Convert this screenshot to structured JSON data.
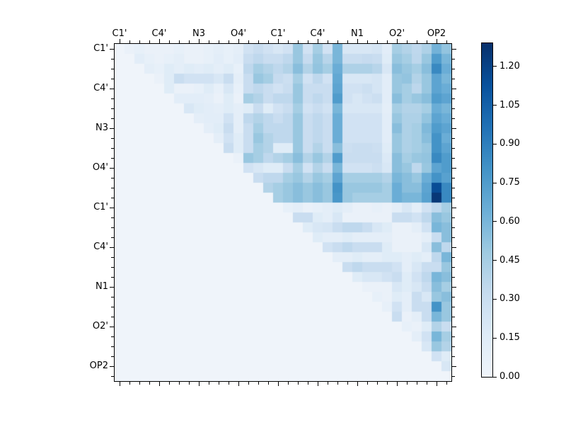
{
  "chart_data": {
    "type": "heatmap",
    "title": "",
    "n": 34,
    "x_tick_labels": [
      "C1'",
      "C4'",
      "N3",
      "O4'",
      "C1'",
      "C4'",
      "N1",
      "O2'",
      "OP2"
    ],
    "y_tick_labels": [
      "C1'",
      "C4'",
      "N3",
      "O4'",
      "C1'",
      "C4'",
      "N1",
      "O2'",
      "OP2"
    ],
    "labeled_tick_positions": [
      0,
      4,
      8,
      12,
      16,
      20,
      24,
      28,
      32
    ],
    "vmin": 0.0,
    "vmax": 1.29,
    "colormap": {
      "name": "Blues",
      "stops": [
        "#eff4fa",
        "#deebf7",
        "#c6dbef",
        "#9ecae1",
        "#6baed6",
        "#4292c6",
        "#2171b5",
        "#08519c",
        "#08306b"
      ]
    },
    "colorbar": {
      "tick_labels": [
        "0.00",
        "0.15",
        "0.30",
        "0.45",
        "0.60",
        "0.75",
        "0.90",
        "1.05",
        "1.20"
      ],
      "tick_values": [
        0.0,
        0.15,
        0.3,
        0.45,
        0.6,
        0.75,
        0.9,
        1.05,
        1.2
      ]
    },
    "matrix": [
      [
        0,
        0.05,
        0.08,
        0.05,
        0.05,
        0.05,
        0.08,
        0.05,
        0.05,
        0.08,
        0.1,
        0.08,
        0.1,
        0.25,
        0.3,
        0.25,
        0.2,
        0.25,
        0.5,
        0.25,
        0.45,
        0.25,
        0.6,
        0.2,
        0.2,
        0.2,
        0.22,
        0.12,
        0.45,
        0.4,
        0.35,
        0.42,
        0.62,
        0.52
      ],
      [
        0,
        0,
        0.12,
        0.08,
        0.05,
        0.08,
        0.1,
        0.05,
        0.05,
        0.08,
        0.12,
        0.08,
        0.12,
        0.3,
        0.35,
        0.3,
        0.3,
        0.35,
        0.5,
        0.32,
        0.5,
        0.38,
        0.6,
        0.3,
        0.3,
        0.32,
        0.3,
        0.15,
        0.5,
        0.45,
        0.36,
        0.5,
        0.75,
        0.6
      ],
      [
        0,
        0,
        0,
        0.1,
        0.08,
        0.15,
        0.1,
        0.15,
        0.12,
        0.15,
        0.1,
        0.15,
        0.08,
        0.35,
        0.45,
        0.4,
        0.35,
        0.4,
        0.55,
        0.4,
        0.52,
        0.45,
        0.65,
        0.42,
        0.42,
        0.42,
        0.38,
        0.2,
        0.55,
        0.5,
        0.45,
        0.55,
        0.85,
        0.65
      ],
      [
        0,
        0,
        0,
        0,
        0.05,
        0.15,
        0.3,
        0.25,
        0.25,
        0.25,
        0.2,
        0.3,
        0.1,
        0.3,
        0.5,
        0.45,
        0.32,
        0.28,
        0.45,
        0.25,
        0.35,
        0.25,
        0.68,
        0.2,
        0.2,
        0.2,
        0.22,
        0.12,
        0.5,
        0.52,
        0.4,
        0.5,
        0.7,
        0.6
      ],
      [
        0,
        0,
        0,
        0,
        0,
        0.15,
        0.05,
        0.05,
        0.08,
        0.15,
        0.08,
        0.2,
        0.08,
        0.3,
        0.35,
        0.3,
        0.25,
        0.3,
        0.5,
        0.3,
        0.3,
        0.3,
        0.7,
        0.25,
        0.25,
        0.28,
        0.22,
        0.12,
        0.5,
        0.45,
        0.36,
        0.5,
        0.7,
        0.65
      ],
      [
        0,
        0,
        0,
        0,
        0,
        0,
        0.12,
        0.12,
        0.12,
        0.1,
        0.05,
        0.15,
        0.05,
        0.45,
        0.4,
        0.3,
        0.35,
        0.35,
        0.5,
        0.3,
        0.35,
        0.3,
        0.75,
        0.25,
        0.2,
        0.25,
        0.28,
        0.12,
        0.55,
        0.45,
        0.5,
        0.55,
        0.75,
        0.7
      ],
      [
        0,
        0,
        0,
        0,
        0,
        0,
        0,
        0.2,
        0.15,
        0.12,
        0.1,
        0.15,
        0.1,
        0.15,
        0.3,
        0.15,
        0.25,
        0.3,
        0.45,
        0.25,
        0.3,
        0.25,
        0.6,
        0.2,
        0.2,
        0.2,
        0.2,
        0.1,
        0.45,
        0.4,
        0.4,
        0.45,
        0.65,
        0.6
      ],
      [
        0,
        0,
        0,
        0,
        0,
        0,
        0,
        0,
        0.1,
        0.12,
        0.12,
        0.25,
        0.1,
        0.35,
        0.4,
        0.35,
        0.3,
        0.35,
        0.5,
        0.3,
        0.35,
        0.3,
        0.65,
        0.25,
        0.25,
        0.25,
        0.25,
        0.12,
        0.5,
        0.42,
        0.42,
        0.52,
        0.7,
        0.65
      ],
      [
        0,
        0,
        0,
        0,
        0,
        0,
        0,
        0,
        0,
        0.1,
        0.15,
        0.3,
        0.1,
        0.3,
        0.45,
        0.35,
        0.35,
        0.35,
        0.5,
        0.3,
        0.35,
        0.3,
        0.65,
        0.25,
        0.25,
        0.25,
        0.25,
        0.12,
        0.55,
        0.42,
        0.45,
        0.58,
        0.75,
        0.7
      ],
      [
        0,
        0,
        0,
        0,
        0,
        0,
        0,
        0,
        0,
        0,
        0.1,
        0.25,
        0.15,
        0.3,
        0.5,
        0.4,
        0.35,
        0.35,
        0.5,
        0.3,
        0.35,
        0.3,
        0.65,
        0.25,
        0.25,
        0.25,
        0.25,
        0.12,
        0.5,
        0.42,
        0.45,
        0.55,
        0.8,
        0.65
      ],
      [
        0,
        0,
        0,
        0,
        0,
        0,
        0,
        0,
        0,
        0,
        0,
        0.3,
        0.15,
        0.3,
        0.45,
        0.4,
        0.15,
        0.15,
        0.5,
        0.3,
        0.4,
        0.3,
        0.55,
        0.28,
        0.3,
        0.3,
        0.28,
        0.15,
        0.5,
        0.42,
        0.45,
        0.5,
        0.8,
        0.7
      ],
      [
        0,
        0,
        0,
        0,
        0,
        0,
        0,
        0,
        0,
        0,
        0,
        0,
        0.05,
        0.5,
        0.45,
        0.35,
        0.4,
        0.45,
        0.55,
        0.4,
        0.5,
        0.4,
        0.75,
        0.3,
        0.3,
        0.3,
        0.3,
        0.18,
        0.55,
        0.45,
        0.5,
        0.52,
        0.85,
        0.75
      ],
      [
        0,
        0,
        0,
        0,
        0,
        0,
        0,
        0,
        0,
        0,
        0,
        0,
        0,
        0.25,
        0.2,
        0.15,
        0.15,
        0.3,
        0.45,
        0.25,
        0.4,
        0.3,
        0.6,
        0.25,
        0.25,
        0.25,
        0.28,
        0.2,
        0.55,
        0.5,
        0.35,
        0.5,
        0.7,
        0.75
      ],
      [
        0,
        0,
        0,
        0,
        0,
        0,
        0,
        0,
        0,
        0,
        0,
        0,
        0,
        0,
        0.3,
        0.35,
        0.35,
        0.45,
        0.5,
        0.4,
        0.5,
        0.45,
        0.7,
        0.45,
        0.45,
        0.45,
        0.45,
        0.4,
        0.6,
        0.55,
        0.5,
        0.65,
        0.8,
        0.72
      ],
      [
        0,
        0,
        0,
        0,
        0,
        0,
        0,
        0,
        0,
        0,
        0,
        0,
        0,
        0,
        0,
        0.4,
        0.45,
        0.5,
        0.55,
        0.5,
        0.55,
        0.5,
        0.8,
        0.5,
        0.5,
        0.5,
        0.5,
        0.45,
        0.65,
        0.55,
        0.55,
        0.7,
        1.15,
        0.85
      ],
      [
        0,
        0,
        0,
        0,
        0,
        0,
        0,
        0,
        0,
        0,
        0,
        0,
        0,
        0,
        0,
        0,
        0.45,
        0.5,
        0.55,
        0.5,
        0.55,
        0.5,
        0.78,
        0.5,
        0.45,
        0.45,
        0.45,
        0.45,
        0.65,
        0.6,
        0.6,
        0.72,
        1.25,
        0.85
      ],
      [
        0,
        0,
        0,
        0,
        0,
        0,
        0,
        0,
        0,
        0,
        0,
        0,
        0,
        0,
        0,
        0,
        0,
        0.08,
        0.1,
        0.05,
        0.08,
        0.1,
        0.15,
        0.1,
        0.05,
        0.05,
        0.08,
        0.05,
        0.1,
        0.2,
        0.1,
        0.25,
        0.35,
        0.45
      ],
      [
        0,
        0,
        0,
        0,
        0,
        0,
        0,
        0,
        0,
        0,
        0,
        0,
        0,
        0,
        0,
        0,
        0,
        0,
        0.3,
        0.3,
        0.15,
        0.1,
        0.2,
        0.05,
        0.05,
        0.05,
        0.05,
        0.05,
        0.3,
        0.3,
        0.25,
        0.35,
        0.55,
        0.5
      ],
      [
        0,
        0,
        0,
        0,
        0,
        0,
        0,
        0,
        0,
        0,
        0,
        0,
        0,
        0,
        0,
        0,
        0,
        0,
        0,
        0.15,
        0.2,
        0.22,
        0.3,
        0.35,
        0.35,
        0.3,
        0.2,
        0.15,
        0.05,
        0.05,
        0.1,
        0.25,
        0.6,
        0.55
      ],
      [
        0,
        0,
        0,
        0,
        0,
        0,
        0,
        0,
        0,
        0,
        0,
        0,
        0,
        0,
        0,
        0,
        0,
        0,
        0,
        0,
        0.15,
        0.1,
        0.1,
        0.15,
        0.1,
        0.1,
        0.1,
        0.1,
        0.05,
        0.05,
        0.05,
        0.1,
        0.3,
        0.55
      ],
      [
        0,
        0,
        0,
        0,
        0,
        0,
        0,
        0,
        0,
        0,
        0,
        0,
        0,
        0,
        0,
        0,
        0,
        0,
        0,
        0,
        0,
        0.25,
        0.3,
        0.35,
        0.3,
        0.3,
        0.3,
        0.15,
        0.05,
        0.05,
        0.05,
        0.2,
        0.55,
        0.35
      ],
      [
        0,
        0,
        0,
        0,
        0,
        0,
        0,
        0,
        0,
        0,
        0,
        0,
        0,
        0,
        0,
        0,
        0,
        0,
        0,
        0,
        0,
        0,
        0.1,
        0.1,
        0.15,
        0.1,
        0.1,
        0.15,
        0.15,
        0.1,
        0.15,
        0.1,
        0.35,
        0.6
      ],
      [
        0,
        0,
        0,
        0,
        0,
        0,
        0,
        0,
        0,
        0,
        0,
        0,
        0,
        0,
        0,
        0,
        0,
        0,
        0,
        0,
        0,
        0,
        0,
        0.3,
        0.35,
        0.3,
        0.3,
        0.3,
        0.25,
        0.1,
        0.2,
        0.3,
        0.3,
        0.5
      ],
      [
        0,
        0,
        0,
        0,
        0,
        0,
        0,
        0,
        0,
        0,
        0,
        0,
        0,
        0,
        0,
        0,
        0,
        0,
        0,
        0,
        0,
        0,
        0,
        0,
        0.15,
        0.2,
        0.2,
        0.25,
        0.3,
        0.15,
        0.25,
        0.35,
        0.6,
        0.55
      ],
      [
        0,
        0,
        0,
        0,
        0,
        0,
        0,
        0,
        0,
        0,
        0,
        0,
        0,
        0,
        0,
        0,
        0,
        0,
        0,
        0,
        0,
        0,
        0,
        0,
        0,
        0.05,
        0.05,
        0.05,
        0.2,
        0.15,
        0.2,
        0.3,
        0.55,
        0.45
      ],
      [
        0,
        0,
        0,
        0,
        0,
        0,
        0,
        0,
        0,
        0,
        0,
        0,
        0,
        0,
        0,
        0,
        0,
        0,
        0,
        0,
        0,
        0,
        0,
        0,
        0,
        0,
        0.08,
        0.05,
        0.15,
        0.1,
        0.3,
        0.2,
        0.5,
        0.55
      ],
      [
        0,
        0,
        0,
        0,
        0,
        0,
        0,
        0,
        0,
        0,
        0,
        0,
        0,
        0,
        0,
        0,
        0,
        0,
        0,
        0,
        0,
        0,
        0,
        0,
        0,
        0,
        0,
        0.08,
        0.25,
        0.1,
        0.3,
        0.3,
        0.8,
        0.5
      ],
      [
        0,
        0,
        0,
        0,
        0,
        0,
        0,
        0,
        0,
        0,
        0,
        0,
        0,
        0,
        0,
        0,
        0,
        0,
        0,
        0,
        0,
        0,
        0,
        0,
        0,
        0,
        0,
        0,
        0.3,
        0.05,
        0.1,
        0.3,
        0.6,
        0.5
      ],
      [
        0,
        0,
        0,
        0,
        0,
        0,
        0,
        0,
        0,
        0,
        0,
        0,
        0,
        0,
        0,
        0,
        0,
        0,
        0,
        0,
        0,
        0,
        0,
        0,
        0,
        0,
        0,
        0,
        0,
        0.08,
        0.05,
        0.15,
        0.4,
        0.3
      ],
      [
        0,
        0,
        0,
        0,
        0,
        0,
        0,
        0,
        0,
        0,
        0,
        0,
        0,
        0,
        0,
        0,
        0,
        0,
        0,
        0,
        0,
        0,
        0,
        0,
        0,
        0,
        0,
        0,
        0,
        0,
        0.1,
        0.25,
        0.6,
        0.45
      ],
      [
        0,
        0,
        0,
        0,
        0,
        0,
        0,
        0,
        0,
        0,
        0,
        0,
        0,
        0,
        0,
        0,
        0,
        0,
        0,
        0,
        0,
        0,
        0,
        0,
        0,
        0,
        0,
        0,
        0,
        0,
        0,
        0.2,
        0.5,
        0.4
      ],
      [
        0,
        0,
        0,
        0,
        0,
        0,
        0,
        0,
        0,
        0,
        0,
        0,
        0,
        0,
        0,
        0,
        0,
        0,
        0,
        0,
        0,
        0,
        0,
        0,
        0,
        0,
        0,
        0,
        0,
        0,
        0,
        0,
        0.25,
        0.15
      ],
      [
        0,
        0,
        0,
        0,
        0,
        0,
        0,
        0,
        0,
        0,
        0,
        0,
        0,
        0,
        0,
        0,
        0,
        0,
        0,
        0,
        0,
        0,
        0,
        0,
        0,
        0,
        0,
        0,
        0,
        0,
        0,
        0,
        0,
        0.2
      ],
      [
        0,
        0,
        0,
        0,
        0,
        0,
        0,
        0,
        0,
        0,
        0,
        0,
        0,
        0,
        0,
        0,
        0,
        0,
        0,
        0,
        0,
        0,
        0,
        0,
        0,
        0,
        0,
        0,
        0,
        0,
        0,
        0,
        0,
        0
      ]
    ]
  }
}
